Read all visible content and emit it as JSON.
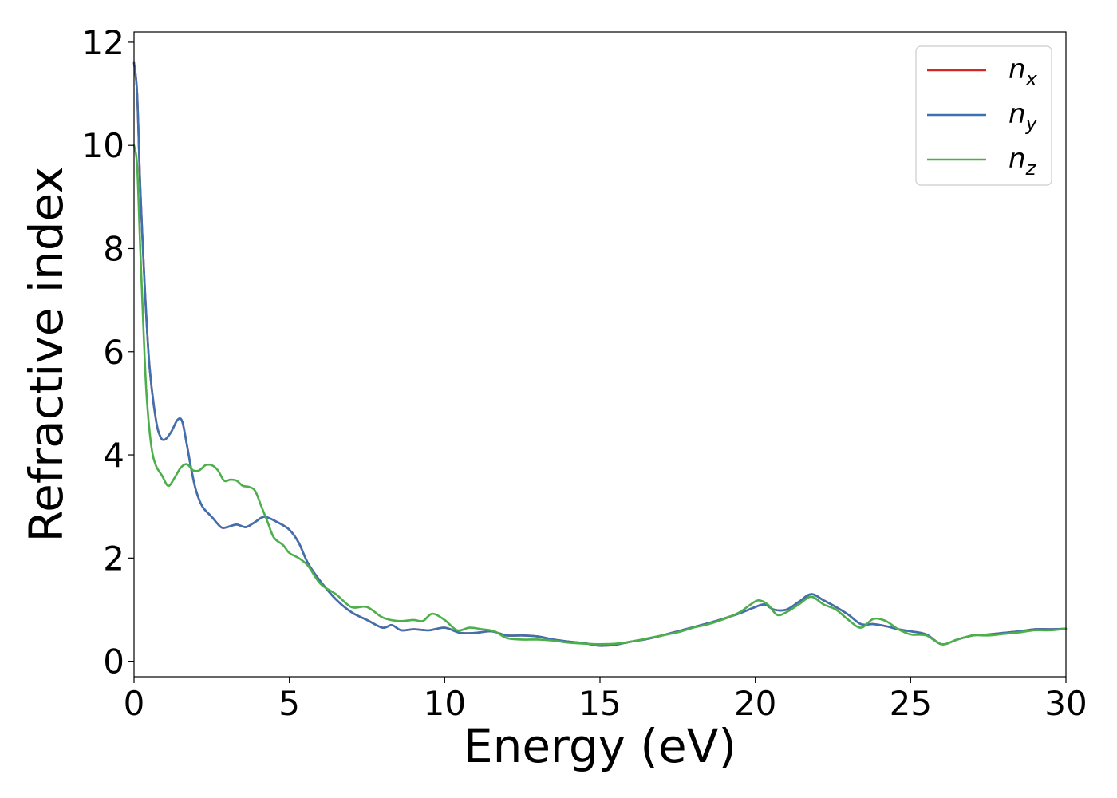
{
  "chart_data": {
    "type": "line",
    "xlabel": "Energy (eV)",
    "ylabel": "Refractive index",
    "xlim": [
      0,
      30
    ],
    "ylim": [
      -0.3,
      12.2
    ],
    "xticks": [
      0,
      5,
      10,
      15,
      20,
      25,
      30
    ],
    "xtick_labels": [
      "0",
      "5",
      "10",
      "15",
      "20",
      "25",
      "30"
    ],
    "yticks": [
      0,
      2,
      4,
      6,
      8,
      10,
      12
    ],
    "ytick_labels": [
      "0",
      "2",
      "4",
      "6",
      "8",
      "10",
      "12"
    ],
    "grid": false,
    "legend_position": "top-right",
    "series": [
      {
        "name": "n",
        "sub": "x",
        "color": "#d62728",
        "x": [
          0.0,
          0.1,
          0.2,
          0.35,
          0.5,
          0.7,
          0.85,
          1.0,
          1.2,
          1.4,
          1.55,
          1.7,
          1.85,
          2.0,
          2.2,
          2.5,
          2.8,
          3.0,
          3.3,
          3.6,
          3.9,
          4.2,
          4.6,
          5.0,
          5.3,
          5.6,
          6.0,
          6.5,
          7.0,
          7.5,
          8.0,
          8.3,
          8.6,
          9.0,
          9.5,
          10.0,
          10.5,
          11.0,
          11.5,
          12.0,
          12.5,
          13.0,
          13.5,
          14.0,
          14.5,
          15.0,
          15.5,
          16.0,
          16.5,
          17.0,
          17.5,
          18.0,
          18.5,
          19.0,
          19.5,
          20.0,
          20.3,
          20.6,
          21.0,
          21.4,
          21.8,
          22.2,
          22.6,
          23.0,
          23.4,
          23.8,
          24.2,
          24.6,
          25.0,
          25.5,
          26.0,
          26.5,
          27.0,
          27.5,
          28.0,
          28.5,
          29.0,
          29.5,
          30.0
        ],
        "y": [
          11.6,
          11.0,
          9.2,
          7.2,
          5.7,
          4.7,
          4.35,
          4.3,
          4.45,
          4.68,
          4.65,
          4.2,
          3.7,
          3.3,
          3.0,
          2.8,
          2.6,
          2.6,
          2.65,
          2.6,
          2.7,
          2.8,
          2.7,
          2.55,
          2.3,
          1.9,
          1.55,
          1.2,
          0.95,
          0.8,
          0.65,
          0.7,
          0.6,
          0.62,
          0.6,
          0.65,
          0.55,
          0.55,
          0.58,
          0.5,
          0.5,
          0.48,
          0.42,
          0.38,
          0.35,
          0.3,
          0.32,
          0.38,
          0.43,
          0.5,
          0.58,
          0.66,
          0.74,
          0.83,
          0.93,
          1.05,
          1.1,
          1.0,
          1.0,
          1.15,
          1.3,
          1.18,
          1.05,
          0.9,
          0.72,
          0.72,
          0.68,
          0.62,
          0.58,
          0.52,
          0.33,
          0.42,
          0.5,
          0.52,
          0.55,
          0.58,
          0.62,
          0.62,
          0.63
        ]
      },
      {
        "name": "n",
        "sub": "y",
        "color": "#3d71b0",
        "x": [
          0.0,
          0.1,
          0.2,
          0.35,
          0.5,
          0.7,
          0.85,
          1.0,
          1.2,
          1.4,
          1.55,
          1.7,
          1.85,
          2.0,
          2.2,
          2.5,
          2.8,
          3.0,
          3.3,
          3.6,
          3.9,
          4.2,
          4.6,
          5.0,
          5.3,
          5.6,
          6.0,
          6.5,
          7.0,
          7.5,
          8.0,
          8.3,
          8.6,
          9.0,
          9.5,
          10.0,
          10.5,
          11.0,
          11.5,
          12.0,
          12.5,
          13.0,
          13.5,
          14.0,
          14.5,
          15.0,
          15.5,
          16.0,
          16.5,
          17.0,
          17.5,
          18.0,
          18.5,
          19.0,
          19.5,
          20.0,
          20.3,
          20.6,
          21.0,
          21.4,
          21.8,
          22.2,
          22.6,
          23.0,
          23.4,
          23.8,
          24.2,
          24.6,
          25.0,
          25.5,
          26.0,
          26.5,
          27.0,
          27.5,
          28.0,
          28.5,
          29.0,
          29.5,
          30.0
        ],
        "y": [
          11.6,
          11.0,
          9.2,
          7.2,
          5.7,
          4.7,
          4.35,
          4.3,
          4.45,
          4.68,
          4.65,
          4.2,
          3.7,
          3.3,
          3.0,
          2.8,
          2.6,
          2.6,
          2.65,
          2.6,
          2.7,
          2.8,
          2.7,
          2.55,
          2.3,
          1.9,
          1.55,
          1.2,
          0.95,
          0.8,
          0.65,
          0.7,
          0.6,
          0.62,
          0.6,
          0.65,
          0.55,
          0.55,
          0.58,
          0.5,
          0.5,
          0.48,
          0.42,
          0.38,
          0.35,
          0.3,
          0.32,
          0.38,
          0.43,
          0.5,
          0.58,
          0.66,
          0.74,
          0.83,
          0.93,
          1.05,
          1.1,
          1.0,
          1.0,
          1.15,
          1.3,
          1.18,
          1.05,
          0.9,
          0.72,
          0.72,
          0.68,
          0.62,
          0.58,
          0.52,
          0.33,
          0.42,
          0.5,
          0.52,
          0.55,
          0.58,
          0.62,
          0.62,
          0.63
        ]
      },
      {
        "name": "n",
        "sub": "z",
        "color": "#4daf4a",
        "x": [
          0.0,
          0.1,
          0.2,
          0.3,
          0.4,
          0.55,
          0.7,
          0.9,
          1.1,
          1.3,
          1.5,
          1.7,
          1.9,
          2.1,
          2.3,
          2.5,
          2.7,
          2.9,
          3.1,
          3.3,
          3.5,
          3.7,
          3.9,
          4.1,
          4.3,
          4.5,
          4.8,
          5.0,
          5.3,
          5.6,
          6.0,
          6.5,
          7.0,
          7.5,
          8.0,
          8.5,
          9.0,
          9.3,
          9.6,
          10.0,
          10.4,
          10.8,
          11.2,
          11.6,
          12.0,
          12.5,
          13.0,
          13.5,
          14.0,
          14.5,
          15.0,
          15.5,
          16.0,
          16.5,
          17.0,
          17.5,
          18.0,
          18.5,
          19.0,
          19.5,
          19.8,
          20.1,
          20.4,
          20.7,
          21.0,
          21.4,
          21.8,
          22.2,
          22.6,
          23.0,
          23.4,
          23.8,
          24.2,
          24.6,
          25.0,
          25.5,
          26.0,
          26.5,
          27.0,
          27.5,
          28.0,
          28.5,
          29.0,
          29.5,
          30.0
        ],
        "y": [
          10.0,
          9.6,
          8.0,
          6.5,
          5.2,
          4.2,
          3.8,
          3.6,
          3.4,
          3.55,
          3.75,
          3.82,
          3.7,
          3.7,
          3.8,
          3.8,
          3.7,
          3.5,
          3.52,
          3.5,
          3.4,
          3.38,
          3.3,
          3.0,
          2.7,
          2.4,
          2.25,
          2.1,
          2.0,
          1.85,
          1.5,
          1.3,
          1.05,
          1.05,
          0.85,
          0.78,
          0.8,
          0.78,
          0.92,
          0.8,
          0.6,
          0.65,
          0.62,
          0.58,
          0.45,
          0.42,
          0.42,
          0.4,
          0.36,
          0.34,
          0.33,
          0.34,
          0.38,
          0.44,
          0.5,
          0.56,
          0.65,
          0.72,
          0.82,
          0.95,
          1.08,
          1.18,
          1.1,
          0.9,
          0.95,
          1.1,
          1.25,
          1.1,
          1.0,
          0.8,
          0.65,
          0.82,
          0.78,
          0.62,
          0.52,
          0.5,
          0.33,
          0.42,
          0.5,
          0.5,
          0.53,
          0.56,
          0.6,
          0.6,
          0.63
        ]
      }
    ]
  }
}
